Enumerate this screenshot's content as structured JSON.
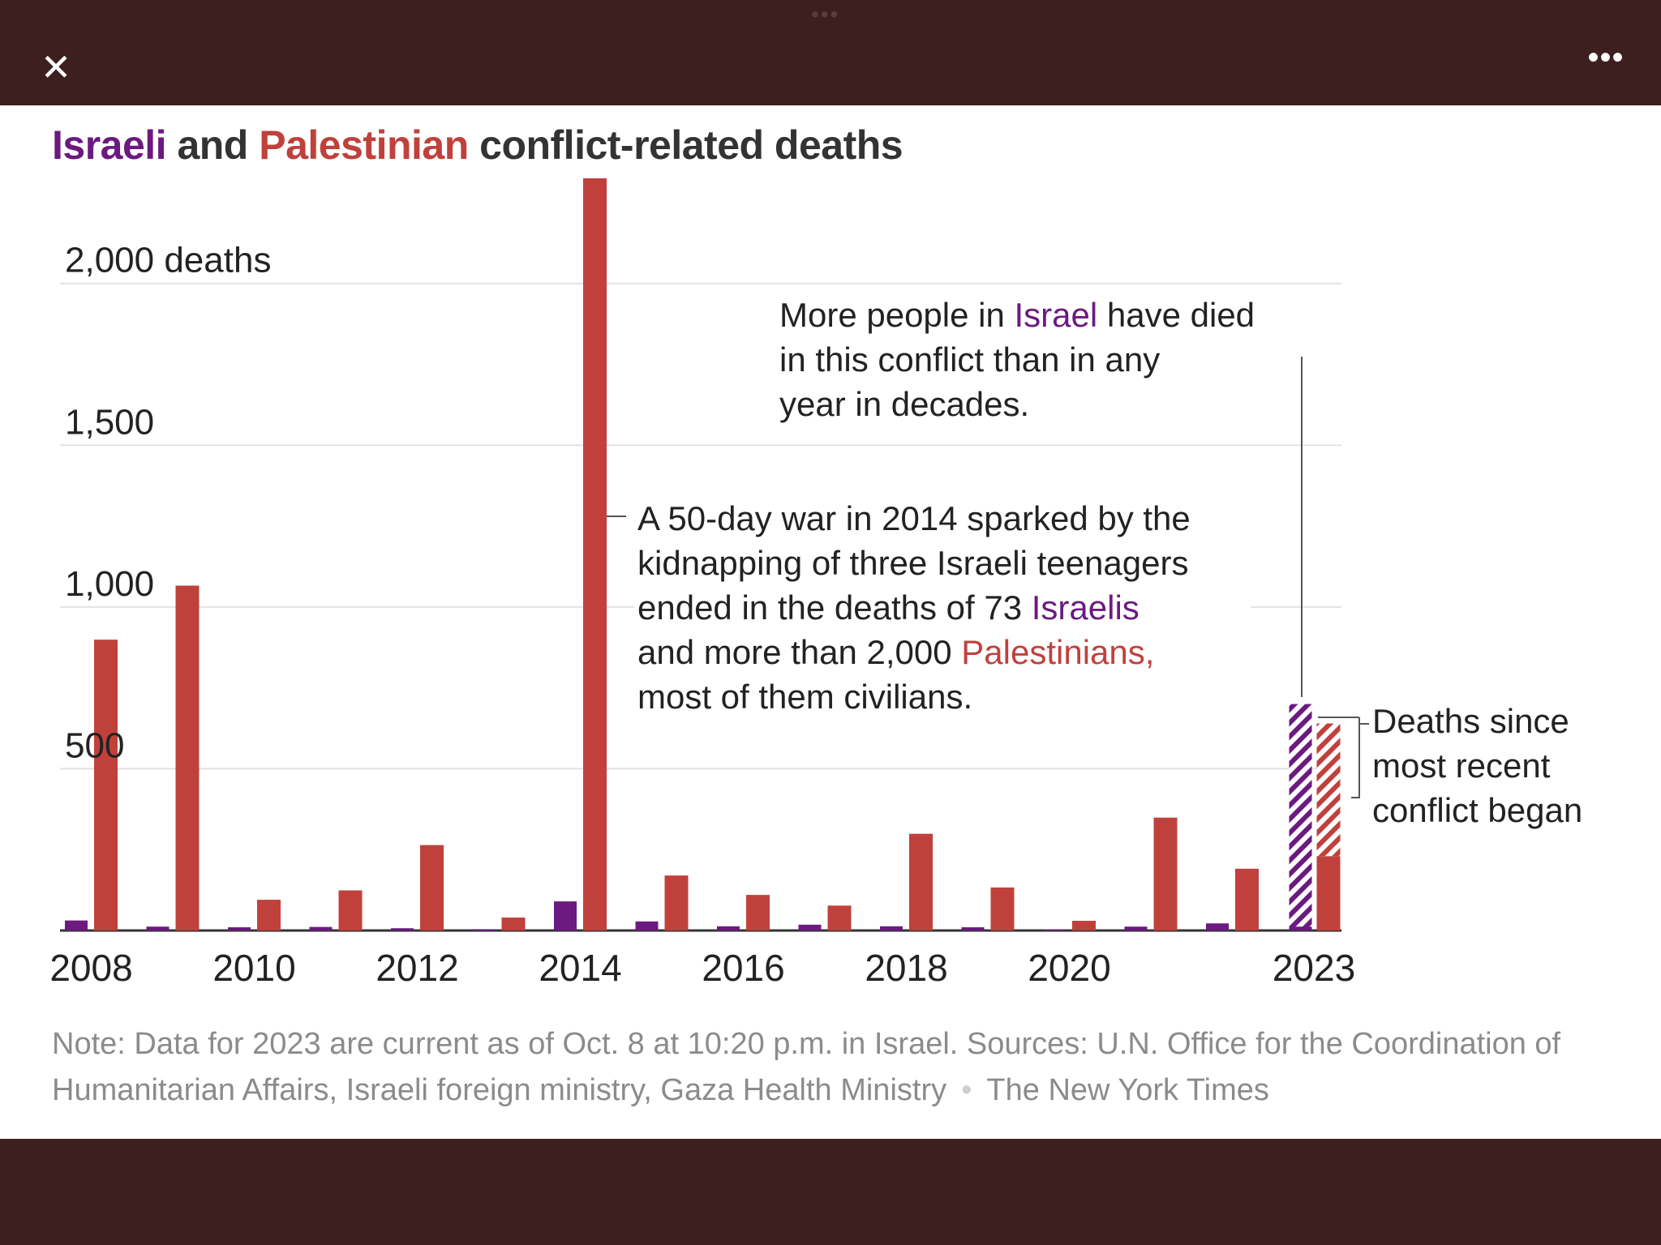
{
  "window": {
    "close_icon": "close-icon",
    "more_icon": "more-options-icon"
  },
  "title": {
    "part1": "Israeli",
    "part2": " and ",
    "part3": "Palestinian",
    "part4": " conflict-related deaths"
  },
  "colors": {
    "israeli": "#6b1a80",
    "palestinian": "#c0413c",
    "grid": "#e2e2e2",
    "text": "#222222"
  },
  "chart_data": {
    "type": "bar",
    "categories": [
      "2008",
      "2009",
      "2010",
      "2011",
      "2012",
      "2013",
      "2014",
      "2015",
      "2016",
      "2017",
      "2018",
      "2019",
      "2020",
      "2021",
      "2022",
      "2023"
    ],
    "x_tick_labels": [
      "2008",
      "2010",
      "2012",
      "2014",
      "2016",
      "2018",
      "2020",
      "2023"
    ],
    "series": [
      {
        "name": "Israeli",
        "values": [
          31,
          12,
          10,
          11,
          7,
          4,
          90,
          28,
          13,
          18,
          13,
          10,
          3,
          12,
          22,
          700
        ]
      },
      {
        "name": "Palestinian",
        "values": [
          899,
          1066,
          95,
          124,
          264,
          40,
          2325,
          170,
          110,
          77,
          299,
          133,
          30,
          349,
          191,
          640
        ]
      }
    ],
    "y_ticks": [
      500,
      1000,
      1500,
      2000
    ],
    "y_tick_labels": [
      "500",
      "1,000",
      "1,500",
      "2,000 deaths"
    ],
    "ylim": [
      0,
      2330
    ],
    "grid": true,
    "hatched_2023": {
      "israeli_since_recent_conflict": 700,
      "palestinian_base": 230,
      "palestinian_since_recent_conflict": 410
    },
    "annotations": {
      "israel_note": {
        "line1_a": "More people in ",
        "line1_b": "Israel",
        "line1_c": " have died",
        "line2": "in this conflict than in any",
        "line3": "year in decades."
      },
      "war_note": {
        "line1": "A 50-day war in 2014 sparked by the",
        "line2": "kidnapping of three Israeli teenagers",
        "line3_a": "ended in the deaths of 73 ",
        "line3_b": "Israelis",
        "line4_a": "and more than 2,000 ",
        "line4_b": "Palestinians,",
        "line5": "most of them civilians."
      },
      "recent_note": {
        "line1": "Deaths since",
        "line2": "most recent",
        "line3": "conflict began"
      }
    }
  },
  "note": {
    "text": "Note: Data for 2023 are current as of Oct. 8 at 10:20 p.m. in Israel. Sources: U.N. Office for the Coordination of Humanitarian Affairs, Israeli foreign ministry, Gaza Health Ministry",
    "credit": "The New York Times"
  }
}
